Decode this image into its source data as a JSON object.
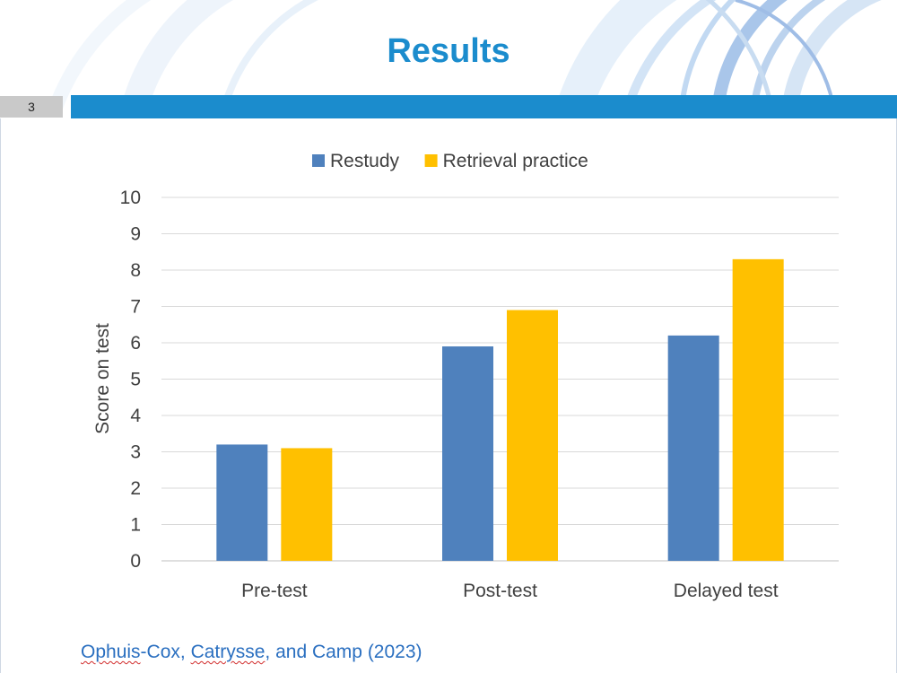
{
  "slide": {
    "title": "Results",
    "number": "3",
    "accent_color": "#1b8ccd",
    "citation_parts": [
      "Ophuis",
      "-Cox, ",
      "Catrysse",
      ", and Camp (2023)"
    ]
  },
  "chart_data": {
    "type": "bar",
    "title": "",
    "xlabel": "",
    "ylabel": "Score on test",
    "ylim": [
      0,
      10
    ],
    "yticks": [
      0,
      1,
      2,
      3,
      4,
      5,
      6,
      7,
      8,
      9,
      10
    ],
    "grid": true,
    "legend_position": "top",
    "categories": [
      "Pre-test",
      "Post-test",
      "Delayed test"
    ],
    "series": [
      {
        "name": "Restudy",
        "color": "#4f81bd",
        "values": [
          3.2,
          5.9,
          6.2
        ]
      },
      {
        "name": "Retrieval practice",
        "color": "#ffc000",
        "values": [
          3.1,
          6.9,
          8.3
        ]
      }
    ]
  }
}
